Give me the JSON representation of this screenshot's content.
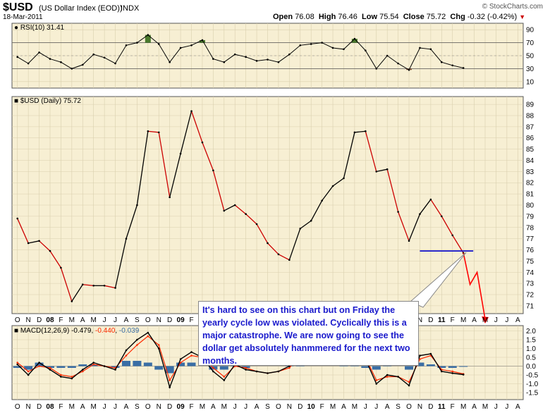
{
  "header": {
    "symbol": "$USD",
    "description": "(US Dollar Index (EOD))",
    "exchange": "INDX",
    "date": "18-Mar-2011",
    "credit": "© StockCharts.com",
    "open_label": "Open",
    "open": "76.08",
    "high_label": "High",
    "high": "76.46",
    "low_label": "Low",
    "low": "75.54",
    "close_label": "Close",
    "close": "75.72",
    "chg_label": "Chg",
    "chg": "-0.32 (-0.42%)"
  },
  "annotation": {
    "text": "It's hard to see on this chart but on Friday the yearly cycle low was violated. Cyclically this is a major catastrophe. We are now going to see the dollar get absolutely hanmmered for the next two months."
  },
  "colors": {
    "panel_bg": "#f7efd3",
    "grid": "#d9cfae",
    "price_line": "#000000",
    "price_down": "#cc0000",
    "rsi_line": "#000000",
    "rsi_overbought_fill": "#4a7a2c",
    "rsi_oversold_fill": "#8a5a3c",
    "macd_line": "#000000",
    "signal_line": "#ff2a00",
    "histogram": "#3a6ea5",
    "support_line": "#1111cc",
    "projection": "#ff0000",
    "callout_text": "#1a1acc"
  },
  "chart_data": [
    {
      "type": "line",
      "panel": "rsi",
      "legend": "RSI(10) 31.41",
      "y_ticks": [
        10,
        30,
        50,
        70,
        90
      ],
      "ylim": [
        0,
        100
      ],
      "reference_lines": [
        30,
        70
      ],
      "x": [
        "2007-10",
        "2007-11",
        "2007-12",
        "2008-01",
        "2008-02",
        "2008-03",
        "2008-04",
        "2008-05",
        "2008-06",
        "2008-07",
        "2008-08",
        "2008-09",
        "2008-10",
        "2008-11",
        "2008-12",
        "2009-01",
        "2009-02",
        "2009-03",
        "2009-04",
        "2009-05",
        "2009-06",
        "2009-07",
        "2009-08",
        "2009-09",
        "2009-10",
        "2009-11",
        "2009-12",
        "2010-01",
        "2010-02",
        "2010-03",
        "2010-04",
        "2010-05",
        "2010-06",
        "2010-07",
        "2010-08",
        "2010-09",
        "2010-10",
        "2010-11",
        "2010-12",
        "2011-01",
        "2011-02",
        "2011-03"
      ],
      "values": [
        48,
        38,
        55,
        45,
        40,
        30,
        36,
        52,
        47,
        38,
        66,
        70,
        82,
        68,
        40,
        62,
        66,
        74,
        45,
        40,
        52,
        48,
        42,
        44,
        40,
        52,
        66,
        68,
        70,
        62,
        60,
        76,
        58,
        30,
        50,
        38,
        28,
        62,
        60,
        40,
        35,
        31
      ]
    },
    {
      "type": "line",
      "panel": "price",
      "legend": "$USD (Daily) 75.72",
      "y_ticks": [
        71,
        72,
        73,
        74,
        75,
        76,
        77,
        78,
        79,
        80,
        81,
        82,
        83,
        84,
        85,
        86,
        87,
        88,
        89
      ],
      "ylim": [
        70.3,
        89.7
      ],
      "x_ticks": [
        "O",
        "N",
        "D",
        "08",
        "F",
        "M",
        "A",
        "M",
        "J",
        "J",
        "A",
        "S",
        "O",
        "N",
        "D",
        "09",
        "F",
        "M",
        "A",
        "M",
        "J",
        "J",
        "A",
        "S",
        "O",
        "N",
        "D",
        "10",
        "F",
        "M",
        "A",
        "M",
        "J",
        "J",
        "A",
        "S",
        "O",
        "N",
        "D",
        "11",
        "F",
        "M",
        "A",
        "M",
        "J",
        "J",
        "A"
      ],
      "x": [
        "2007-10",
        "2007-11",
        "2007-12",
        "2008-01",
        "2008-02",
        "2008-03",
        "2008-04",
        "2008-05",
        "2008-06",
        "2008-07",
        "2008-08",
        "2008-09",
        "2008-10",
        "2008-11",
        "2008-12",
        "2009-01",
        "2009-02",
        "2009-03",
        "2009-04",
        "2009-05",
        "2009-06",
        "2009-07",
        "2009-08",
        "2009-09",
        "2009-10",
        "2009-11",
        "2009-12",
        "2010-01",
        "2010-02",
        "2010-03",
        "2010-04",
        "2010-05",
        "2010-06",
        "2010-07",
        "2010-08",
        "2010-09",
        "2010-10",
        "2010-11",
        "2010-12",
        "2011-01",
        "2011-02",
        "2011-03"
      ],
      "values": [
        78.8,
        76.6,
        76.8,
        75.9,
        74.4,
        71.4,
        72.9,
        72.8,
        72.8,
        72.6,
        77.0,
        80.0,
        86.6,
        86.5,
        80.7,
        84.6,
        88.4,
        85.6,
        83.1,
        79.5,
        80.0,
        79.2,
        78.3,
        76.6,
        75.6,
        75.1,
        77.9,
        78.6,
        80.4,
        81.7,
        82.4,
        86.5,
        86.6,
        83.0,
        83.2,
        79.4,
        76.8,
        79.2,
        80.5,
        79.0,
        77.3,
        75.72
      ],
      "support_line": {
        "value": 75.9,
        "from": "2010-11",
        "to": "2011-03"
      },
      "projection": {
        "x": [
          "2011-03",
          "2011-04",
          "2011-04",
          "2011-05"
        ],
        "values": [
          75.72,
          72.9,
          74.0,
          69.8
        ]
      }
    },
    {
      "type": "line",
      "panel": "macd",
      "legend_prefix": "MACD(12,26,9)",
      "legend_macd": "-0.479",
      "legend_signal": "-0.440",
      "legend_hist": "-0.039",
      "y_ticks": [
        -1.5,
        -1.0,
        -0.5,
        0.0,
        0.5,
        1.0,
        1.5,
        2.0
      ],
      "ylim": [
        -1.9,
        2.3
      ],
      "x_ticks": [
        "O",
        "N",
        "D",
        "08",
        "F",
        "M",
        "A",
        "M",
        "J",
        "J",
        "A",
        "S",
        "O",
        "N",
        "D",
        "09",
        "F",
        "M",
        "A",
        "M",
        "J",
        "J",
        "A",
        "S",
        "O",
        "N",
        "D",
        "10",
        "F",
        "M",
        "A",
        "M",
        "J",
        "J",
        "A",
        "S",
        "O",
        "N",
        "D",
        "11",
        "F",
        "M",
        "A",
        "M",
        "J",
        "J",
        "A"
      ],
      "x": [
        "2007-10",
        "2007-11",
        "2007-12",
        "2008-01",
        "2008-02",
        "2008-03",
        "2008-04",
        "2008-05",
        "2008-06",
        "2008-07",
        "2008-08",
        "2008-09",
        "2008-10",
        "2008-11",
        "2008-12",
        "2009-01",
        "2009-02",
        "2009-03",
        "2009-04",
        "2009-05",
        "2009-06",
        "2009-07",
        "2009-08",
        "2009-09",
        "2009-10",
        "2009-11",
        "2009-12",
        "2010-01",
        "2010-02",
        "2010-03",
        "2010-04",
        "2010-05",
        "2010-06",
        "2010-07",
        "2010-08",
        "2010-09",
        "2010-10",
        "2010-11",
        "2010-12",
        "2011-01",
        "2011-02",
        "2011-03"
      ],
      "series": [
        {
          "name": "MACD",
          "values": [
            0.1,
            -0.5,
            0.2,
            -0.2,
            -0.6,
            -0.7,
            -0.2,
            0.2,
            0.0,
            -0.2,
            0.9,
            1.5,
            1.9,
            1.0,
            -1.2,
            0.4,
            0.8,
            0.5,
            -0.3,
            -0.8,
            0.1,
            -0.2,
            -0.3,
            -0.4,
            -0.3,
            0.0,
            0.8,
            0.7,
            0.6,
            0.4,
            0.5,
            1.1,
            0.4,
            -1.0,
            -0.5,
            -0.6,
            -1.1,
            0.6,
            0.7,
            -0.3,
            -0.4,
            -0.479
          ]
        },
        {
          "name": "Signal",
          "values": [
            0.2,
            -0.3,
            0.0,
            -0.1,
            -0.5,
            -0.6,
            -0.3,
            0.1,
            0.0,
            -0.1,
            0.6,
            1.2,
            1.7,
            1.2,
            -0.8,
            0.2,
            0.6,
            0.5,
            -0.1,
            -0.6,
            0.0,
            -0.1,
            -0.3,
            -0.4,
            -0.3,
            -0.1,
            0.6,
            0.7,
            0.6,
            0.4,
            0.4,
            0.9,
            0.5,
            -0.8,
            -0.6,
            -0.6,
            -0.9,
            0.4,
            0.6,
            -0.2,
            -0.3,
            -0.44
          ]
        }
      ],
      "histogram": [
        -0.1,
        -0.2,
        0.2,
        -0.1,
        -0.1,
        -0.1,
        0.1,
        0.1,
        0.0,
        -0.1,
        0.3,
        0.3,
        0.2,
        -0.2,
        -0.4,
        0.2,
        0.2,
        0.0,
        -0.2,
        -0.2,
        0.1,
        -0.1,
        0.0,
        0.0,
        0.0,
        0.1,
        0.2,
        0.0,
        0.0,
        0.0,
        0.1,
        0.2,
        -0.1,
        -0.2,
        0.1,
        0.0,
        -0.2,
        0.2,
        0.1,
        -0.1,
        -0.1,
        -0.039
      ]
    }
  ]
}
